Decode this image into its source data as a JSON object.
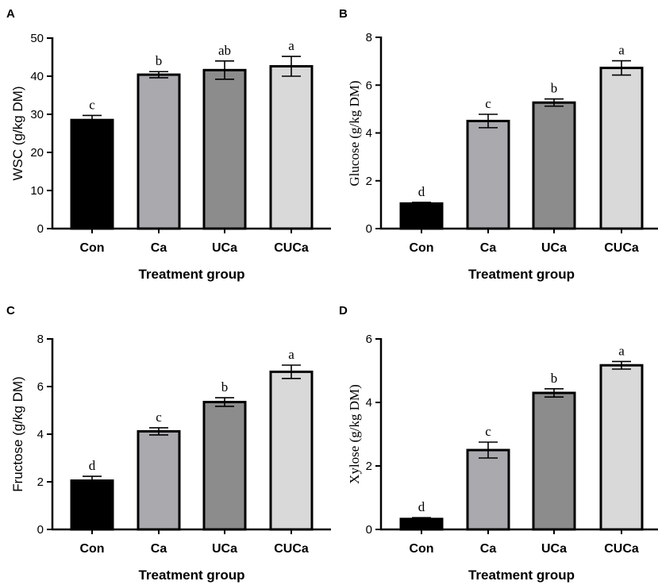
{
  "chart_data": [
    {
      "panel": "A",
      "type": "bar",
      "categories": [
        "Con",
        "Ca",
        "UCa",
        "CUCa"
      ],
      "values": [
        28.5,
        40.4,
        41.6,
        42.6
      ],
      "errors": [
        1.2,
        0.8,
        2.4,
        2.6
      ],
      "significance": [
        "c",
        "b",
        "ab",
        "a"
      ],
      "ylabel": "WSC (g/kg DM)",
      "xlabel": "Treatment group",
      "ylim": [
        0,
        50
      ],
      "yticks": [
        0,
        10,
        20,
        30,
        40,
        50
      ],
      "colors": [
        "#000000",
        "#a9a9ae",
        "#8c8c8c",
        "#d9d9d9"
      ]
    },
    {
      "panel": "B",
      "type": "bar",
      "categories": [
        "Con",
        "Ca",
        "UCa",
        "CUCa"
      ],
      "values": [
        1.05,
        4.5,
        5.27,
        6.72
      ],
      "errors": [
        0.05,
        0.28,
        0.15,
        0.3
      ],
      "significance": [
        "d",
        "c",
        "b",
        "a"
      ],
      "ylabel": "Glucose (g/kg DM)",
      "xlabel": "Treatment group",
      "ylim": [
        0,
        8
      ],
      "yticks": [
        0,
        2,
        4,
        6,
        8
      ],
      "colors": [
        "#000000",
        "#a9a9ae",
        "#8c8c8c",
        "#d9d9d9"
      ]
    },
    {
      "panel": "C",
      "type": "bar",
      "categories": [
        "Con",
        "Ca",
        "UCa",
        "CUCa"
      ],
      "values": [
        2.05,
        4.12,
        5.35,
        6.62
      ],
      "errors": [
        0.18,
        0.15,
        0.18,
        0.28
      ],
      "significance": [
        "d",
        "c",
        "b",
        "a"
      ],
      "ylabel": "Fructose (g/kg DM)",
      "xlabel": "Treatment group",
      "ylim": [
        0,
        8
      ],
      "yticks": [
        0,
        2,
        4,
        6,
        8
      ],
      "colors": [
        "#000000",
        "#a9a9ae",
        "#8c8c8c",
        "#d9d9d9"
      ]
    },
    {
      "panel": "D",
      "type": "bar",
      "categories": [
        "Con",
        "Ca",
        "UCa",
        "CUCa"
      ],
      "values": [
        0.33,
        2.5,
        4.3,
        5.17
      ],
      "errors": [
        0.04,
        0.25,
        0.13,
        0.12
      ],
      "significance": [
        "d",
        "c",
        "b",
        "a"
      ],
      "ylabel": "Xylose (g/kg DM)",
      "xlabel": "Treatment group",
      "ylim": [
        0,
        6
      ],
      "yticks": [
        0,
        2,
        4,
        6
      ],
      "colors": [
        "#000000",
        "#a9a9ae",
        "#8c8c8c",
        "#d9d9d9"
      ]
    }
  ]
}
